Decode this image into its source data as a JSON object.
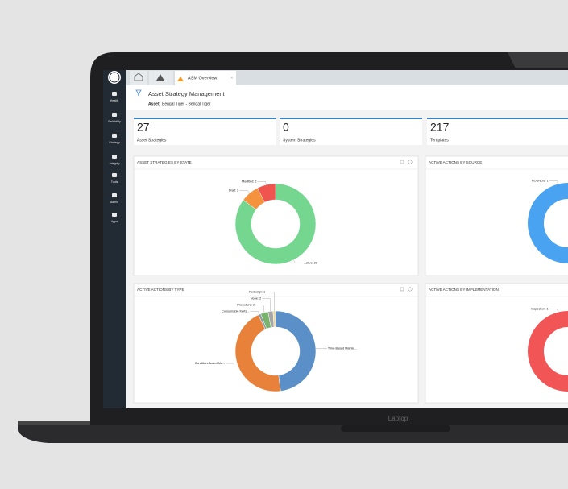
{
  "app": {
    "sidebar": [
      "Health",
      "Reliability",
      "Strategy",
      "Integrity",
      "Tools",
      "Admin",
      "Apps"
    ],
    "tab": "ASM Overview",
    "title": "Asset Strategy Management",
    "asset_label": "Asset:",
    "asset": "Bengal Tiger - Bengal Tiger"
  },
  "cards": [
    {
      "value": 27,
      "label": "Asset Strategies"
    },
    {
      "value": 0,
      "label": "System Strategies"
    },
    {
      "value": 217,
      "label": "Templates"
    }
  ],
  "chart_data": [
    {
      "type": "donut",
      "title": "ASSET STRATEGIES BY STATE",
      "categories": [
        "Active: 23",
        "Draft: 2",
        "Modified: 2"
      ],
      "values": [
        23,
        2,
        2
      ],
      "colors": [
        "#74d68f",
        "#f5923e",
        "#f0544f"
      ]
    },
    {
      "type": "donut",
      "title": "ACTIVE ACTIONS BY SOURCE",
      "categories": [
        "ROUNDS: 1"
      ],
      "values": [
        1
      ],
      "colors": [
        "#4aa3f0"
      ]
    },
    {
      "type": "donut",
      "title": "ACTIVE ACTIONS BY TYPE",
      "categories": [
        "Time-Based Mainte...",
        "Condition-Based Ma...",
        "Consumable Kerts...",
        "Procedure: 3",
        "None: 2",
        "Redesign: 1"
      ],
      "values": [
        48,
        45,
        1,
        3,
        2,
        1
      ],
      "colors": [
        "#5b8fc7",
        "#e8813a",
        "#8c9aa6",
        "#77b36a",
        "#a6a6a6",
        "#e6d7a3"
      ]
    },
    {
      "type": "donut",
      "title": "ACTIVE ACTIONS BY IMPLEMENTATION",
      "categories": [
        "Inspection: 1"
      ],
      "values": [
        1
      ],
      "colors": [
        "#f25555"
      ]
    }
  ],
  "laptop_label": "Laptop"
}
